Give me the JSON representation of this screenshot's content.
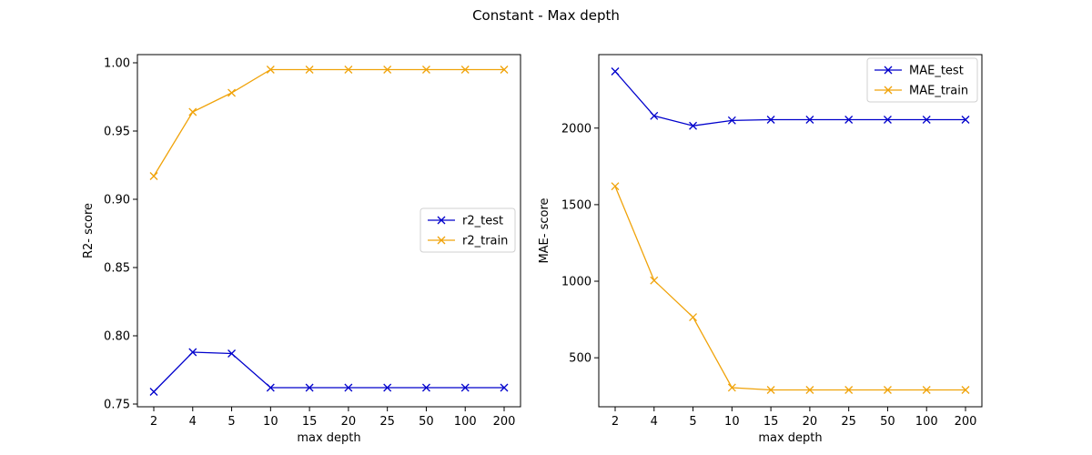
{
  "figure": {
    "title": "Constant - Max depth"
  },
  "chart_data": [
    {
      "type": "line",
      "title": "",
      "xlabel": "max depth",
      "ylabel": "R2- score",
      "categories": [
        "2",
        "4",
        "5",
        "10",
        "15",
        "20",
        "25",
        "50",
        "100",
        "200"
      ],
      "ylim": [
        0.748,
        1.006
      ],
      "yticks": [
        0.75,
        0.8,
        0.85,
        0.9,
        0.95,
        1.0
      ],
      "ytick_labels": [
        "0.75",
        "0.80",
        "0.85",
        "0.90",
        "0.95",
        "1.00"
      ],
      "legend_position": "center-right",
      "grid": false,
      "marker": "x",
      "series": [
        {
          "name": "r2_test",
          "color": "#0000cc",
          "values": [
            0.759,
            0.788,
            0.787,
            0.762,
            0.762,
            0.762,
            0.762,
            0.762,
            0.762,
            0.762
          ]
        },
        {
          "name": "r2_train",
          "color": "#f0a30a",
          "values": [
            0.917,
            0.964,
            0.978,
            0.995,
            0.995,
            0.995,
            0.995,
            0.995,
            0.995,
            0.995
          ]
        }
      ]
    },
    {
      "type": "line",
      "title": "",
      "xlabel": "max depth",
      "ylabel": "MAE- score",
      "categories": [
        "2",
        "4",
        "5",
        "10",
        "15",
        "20",
        "25",
        "50",
        "100",
        "200"
      ],
      "ylim": [
        180,
        2480
      ],
      "yticks": [
        500,
        1000,
        1500,
        2000
      ],
      "ytick_labels": [
        "500",
        "1000",
        "1500",
        "2000"
      ],
      "legend_position": "top-right",
      "grid": false,
      "marker": "x",
      "series": [
        {
          "name": "MAE_test",
          "color": "#0000cc",
          "values": [
            2370,
            2080,
            2015,
            2050,
            2055,
            2055,
            2055,
            2055,
            2055,
            2055
          ]
        },
        {
          "name": "MAE_train",
          "color": "#f0a30a",
          "values": [
            1620,
            1005,
            765,
            305,
            290,
            290,
            290,
            290,
            290,
            290
          ]
        }
      ]
    }
  ]
}
